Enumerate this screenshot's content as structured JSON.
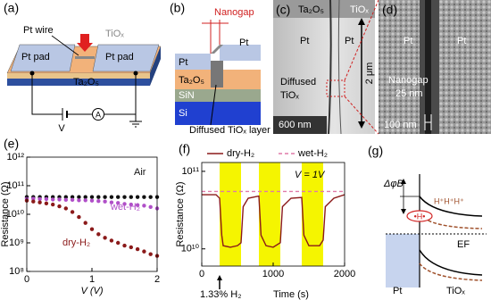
{
  "diagrams": {
    "a": {
      "panel_label": "(a)",
      "pt_wire": "Pt wire",
      "tiox": "TiOₓ",
      "pad_left": "Pt pad",
      "pad_right": "Pt pad",
      "oxide": "Ta₂O₅",
      "voltage": "V",
      "ammeter": "A"
    },
    "b": {
      "panel_label": "(b)",
      "nanogap": "Nanogap",
      "pt_left": "Pt",
      "pt_right": "Pt",
      "oxide": "Ta₂O₅",
      "sin": "SiN",
      "si": "Si",
      "diffused": "Diffused TiOₓ layer"
    },
    "c": {
      "panel_label": "(c)",
      "oxide": "Ta₂O₅",
      "tiox": "TiOₓ",
      "pt_left": "Pt",
      "pt_right": "Pt",
      "diffused": "Diffused",
      "diffused2": "TiOₓ",
      "scale": "600 nm",
      "length": "2 μm"
    },
    "d": {
      "panel_label": "(d)",
      "pt_left": "Pt",
      "pt_right": "Pt",
      "nanogap": "Nanogap",
      "gap_size": "25 nm",
      "scale": "100 nm"
    },
    "g": {
      "panel_label": "(g)",
      "barrier": "ΔφB",
      "protons": "H⁺H⁺H⁺",
      "hydride": "•H•",
      "fermi": "EF",
      "metal": "Pt",
      "oxide": "TiOₓ"
    }
  },
  "chart_data": [
    {
      "type": "scatter",
      "panel_label": "(e)",
      "xlabel": "V (V)",
      "ylabel": "Resistance (Ω)",
      "log_y": true,
      "xlim": [
        0,
        2
      ],
      "xticks": [
        0,
        1,
        2
      ],
      "ylim": [
        100000000,
        1000000000000
      ],
      "yticks": [
        {
          "value": 100000000,
          "label": "10⁸"
        },
        {
          "value": 1000000000,
          "label": "10⁹"
        },
        {
          "value": 10000000000,
          "label": "10¹⁰"
        },
        {
          "value": 100000000000,
          "label": "10¹¹"
        },
        {
          "value": 1000000000000,
          "label": "10¹²"
        }
      ],
      "series": [
        {
          "name": "Air",
          "color": "#111111",
          "x": [
            0,
            0.1,
            0.2,
            0.3,
            0.4,
            0.5,
            0.6,
            0.7,
            0.8,
            0.9,
            1,
            1.1,
            1.2,
            1.3,
            1.4,
            1.5,
            1.6,
            1.7,
            1.8,
            1.9,
            2
          ],
          "values": [
            40000000000,
            40000000000,
            40000000000,
            40000000000,
            40000000000,
            40000000000,
            40000000000,
            40000000000,
            40000000000,
            40000000000,
            40000000000,
            40000000000,
            40000000000,
            40000000000,
            40000000000,
            40000000000,
            40000000000,
            40000000000,
            40000000000,
            40000000000,
            40000000000
          ]
        },
        {
          "name": "wet-H₂",
          "color": "#b04fc8",
          "x": [
            0,
            0.1,
            0.2,
            0.3,
            0.4,
            0.5,
            0.6,
            0.7,
            0.8,
            0.9,
            1,
            1.1,
            1.2,
            1.3,
            1.4,
            1.5,
            1.6,
            1.7,
            1.8,
            1.9,
            2
          ],
          "values": [
            35000000000,
            35000000000,
            34000000000,
            34000000000,
            33000000000,
            33000000000,
            32000000000,
            32000000000,
            31000000000,
            31000000000,
            30000000000,
            29000000000,
            28000000000,
            26000000000,
            25000000000,
            23000000000,
            22000000000,
            21000000000,
            20000000000,
            18000000000,
            16000000000
          ]
        },
        {
          "name": "dry-H₂",
          "color": "#8b1a1a",
          "x": [
            0,
            0.1,
            0.2,
            0.3,
            0.4,
            0.5,
            0.6,
            0.7,
            0.8,
            0.9,
            1,
            1.1,
            1.2,
            1.3,
            1.4,
            1.5,
            1.6,
            1.7,
            1.8,
            1.9,
            2
          ],
          "values": [
            30000000000,
            28000000000,
            26000000000,
            24000000000,
            22000000000,
            19000000000,
            16000000000,
            12000000000,
            8000000000,
            5000000000,
            3000000000,
            2000000000,
            1500000000,
            1200000000,
            1000000000,
            800000000,
            700000000,
            600000000,
            500000000,
            400000000,
            350000000
          ]
        }
      ]
    },
    {
      "type": "line",
      "panel_label": "(f)",
      "xlabel": "Time (s)",
      "ylabel": "Resistance (Ω)",
      "log_y": true,
      "annotation": "V = 1V",
      "gas_label": "1.33% H₂",
      "xlim": [
        0,
        2000
      ],
      "xticks": [
        0,
        1000,
        2000
      ],
      "ylim": [
        6000000000,
        130000000000
      ],
      "yticks": [
        {
          "value": 10000000000,
          "label": "10¹⁰"
        },
        {
          "value": 100000000000,
          "label": "10¹¹"
        }
      ],
      "h2_intervals": [
        [
          250,
          550
        ],
        [
          800,
          1100
        ],
        [
          1400,
          1700
        ]
      ],
      "h2_color": "#f5f500",
      "series": [
        {
          "name": "dry-H₂",
          "color": "#8b1a1a",
          "dashed": false,
          "x": [
            0,
            200,
            250,
            280,
            300,
            400,
            500,
            550,
            580,
            650,
            800,
            830,
            900,
            1000,
            1100,
            1130,
            1250,
            1400,
            1430,
            1500,
            1650,
            1700,
            1730,
            1850,
            2000
          ],
          "values": [
            50000000000,
            50000000000,
            45000000000,
            15000000000,
            11000000000,
            10500000000,
            11000000000,
            12000000000,
            35000000000,
            45000000000,
            48000000000,
            15000000000,
            11000000000,
            10500000000,
            12000000000,
            35000000000,
            45000000000,
            46000000000,
            15000000000,
            11000000000,
            11000000000,
            13000000000,
            35000000000,
            45000000000,
            50000000000
          ]
        },
        {
          "name": "wet-H₂",
          "color": "#e07aa8",
          "dashed": true,
          "x": [
            0,
            2000
          ],
          "values": [
            55000000000,
            55000000000
          ]
        }
      ]
    }
  ]
}
